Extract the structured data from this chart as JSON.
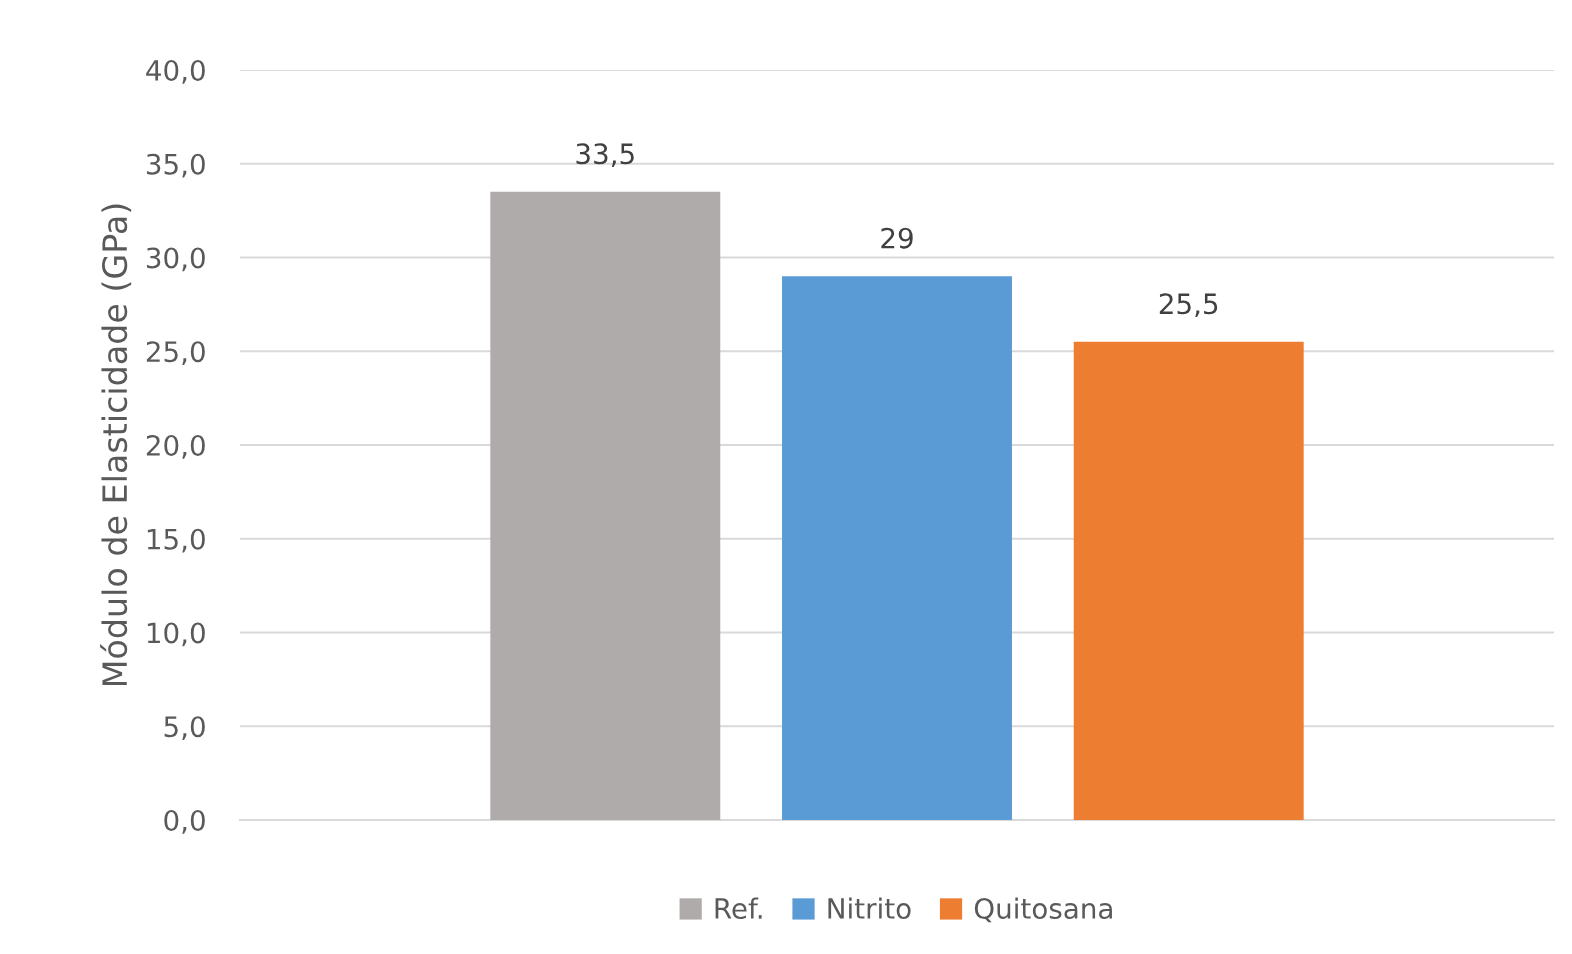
{
  "chart_data": {
    "type": "bar",
    "ylabel": "Módulo de Elasticidade (GPa)",
    "categories": [
      null
    ],
    "series": [
      {
        "name": "Ref.",
        "color": "#afabab",
        "values": [
          33.5
        ],
        "value_labels": [
          "33,5"
        ]
      },
      {
        "name": "Nitrito",
        "color": "#5b9bd5",
        "values": [
          29
        ],
        "value_labels": [
          "29"
        ]
      },
      {
        "name": "Quitosana",
        "color": "#ed7d31",
        "values": [
          25.5
        ],
        "value_labels": [
          "25,5"
        ]
      }
    ],
    "ylim": [
      0,
      40
    ],
    "yticks": [
      {
        "value": 0,
        "label": "0,0"
      },
      {
        "value": 5,
        "label": "5,0"
      },
      {
        "value": 10,
        "label": "10,0"
      },
      {
        "value": 15,
        "label": "15,0"
      },
      {
        "value": 20,
        "label": "20,0"
      },
      {
        "value": 25,
        "label": "25,0"
      },
      {
        "value": 30,
        "label": "30,0"
      },
      {
        "value": 35,
        "label": "35,0"
      },
      {
        "value": 40,
        "label": "40,0"
      }
    ],
    "grid": "y",
    "legend": "bottom"
  }
}
